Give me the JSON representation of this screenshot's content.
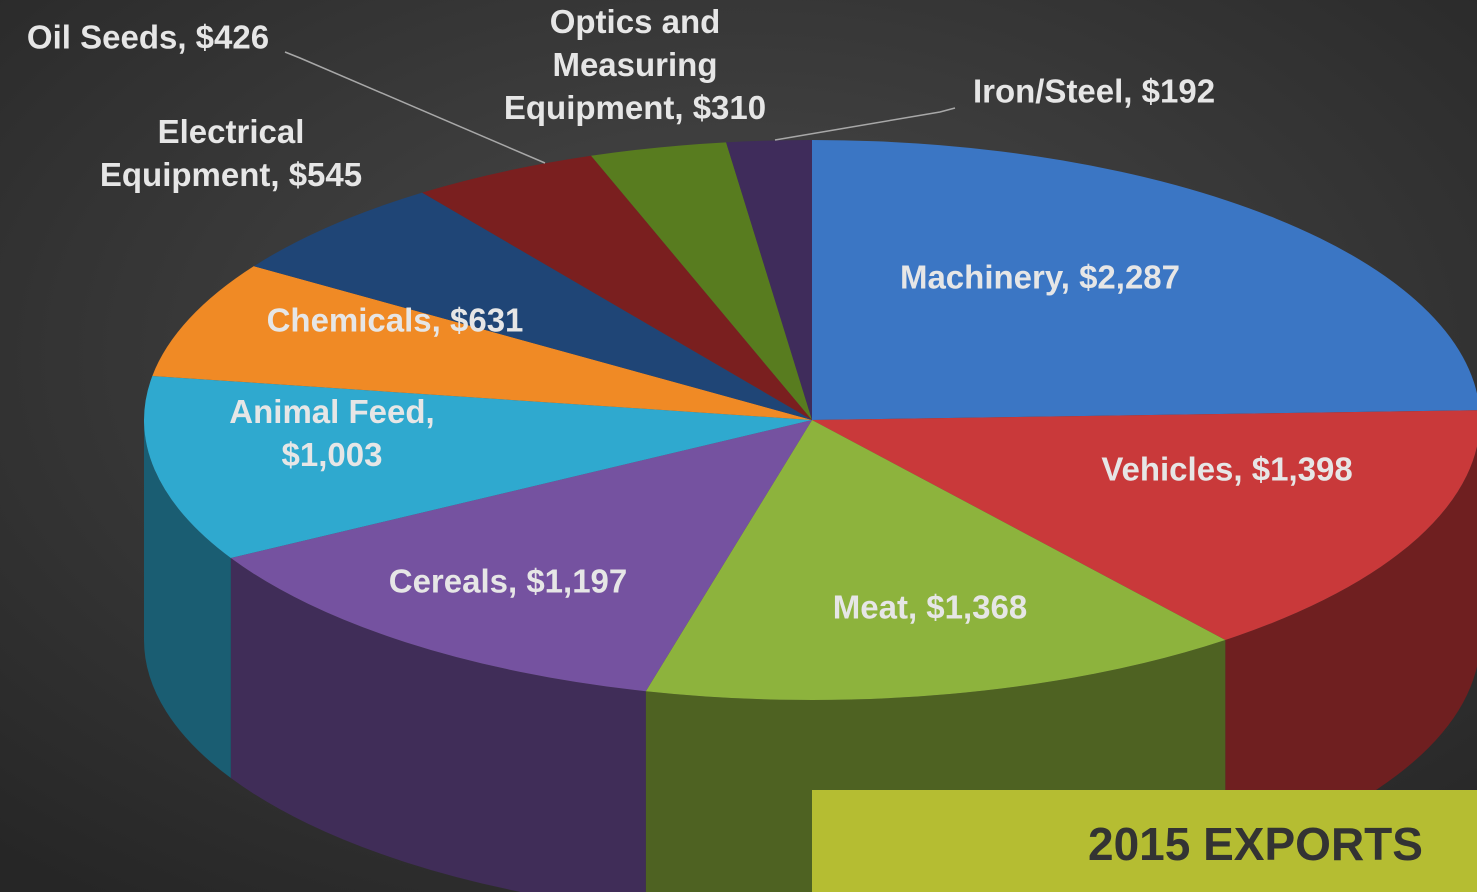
{
  "chart_data": {
    "type": "pie3d",
    "title": "2015 EXPORTS",
    "categories": [
      "Machinery",
      "Vehicles",
      "Meat",
      "Cereals",
      "Animal Feed",
      "Chemicals",
      "Electrical Equipment",
      "Oil Seeds",
      "Optics and Measuring Equipment",
      "Iron/Steel"
    ],
    "values": [
      2287,
      1398,
      1368,
      1197,
      1003,
      631,
      545,
      426,
      310,
      192
    ],
    "value_labels": [
      "Machinery, $2,287",
      "Vehicles, $1,398",
      "Meat, $1,368",
      "Cereals, $1,197",
      "Animal Feed, $1,003",
      "Chemicals, $631",
      "Electrical Equipment, $545",
      "Oil Seeds, $426",
      "Optics and Measuring Equipment, $310",
      "Iron/Steel, $192"
    ],
    "colors": [
      "#3b76c4",
      "#c9393a",
      "#8db33d",
      "#7552a0",
      "#2fa9cf",
      "#f08a25",
      "#1f4576",
      "#7a1f1f",
      "#587c1f",
      "#3f2c5b"
    ]
  }
}
